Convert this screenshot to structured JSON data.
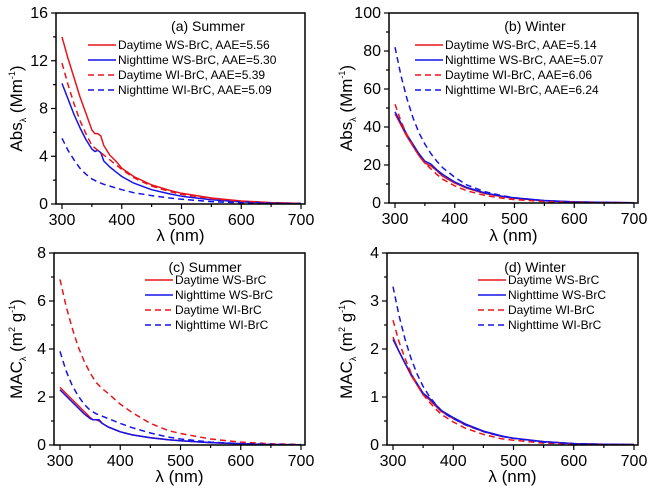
{
  "chart_data": [
    {
      "id": "a",
      "type": "line",
      "title": "(a) Summer",
      "xlabel": "λ (nm)",
      "ylabel_main": "Abs",
      "ylabel_sub": "λ",
      "ylabel_unit": "(Mm",
      "ylabel_sup": "-1",
      "ylabel_close": ")",
      "xlim": [
        290,
        705
      ],
      "ylim": [
        0,
        16
      ],
      "xticks": [
        300,
        400,
        500,
        600,
        700
      ],
      "yticks": [
        0,
        4,
        8,
        12,
        16
      ],
      "grid": false,
      "legend_position": "top-right",
      "series": [
        {
          "name": "Daytime WS-BrC, AAE=5.56",
          "color": "#e8141b",
          "dash": false,
          "x": [
            300,
            310,
            320,
            330,
            340,
            350,
            355,
            360,
            365,
            370,
            380,
            390,
            400,
            420,
            450,
            480,
            500,
            550,
            600,
            650,
            700
          ],
          "y": [
            14.0,
            12.2,
            10.6,
            9.0,
            7.6,
            6.2,
            5.9,
            5.9,
            5.7,
            4.9,
            4.1,
            3.6,
            3.0,
            2.3,
            1.6,
            1.15,
            0.9,
            0.5,
            0.25,
            0.12,
            0.05
          ]
        },
        {
          "name": "Nighttime WS-BrC, AAE=5.30",
          "color": "#1414e6",
          "dash": false,
          "x": [
            300,
            310,
            320,
            330,
            340,
            350,
            355,
            360,
            365,
            370,
            380,
            390,
            400,
            420,
            450,
            480,
            500,
            550,
            600,
            650,
            700
          ],
          "y": [
            10.1,
            8.8,
            7.5,
            6.4,
            5.4,
            4.6,
            4.4,
            4.5,
            4.3,
            3.6,
            3.1,
            2.7,
            2.3,
            1.75,
            1.2,
            0.85,
            0.65,
            0.35,
            0.18,
            0.08,
            0.04
          ]
        },
        {
          "name": "Daytime WI-BrC, AAE=5.39",
          "color": "#e8141b",
          "dash": true,
          "x": [
            300,
            310,
            320,
            330,
            340,
            350,
            360,
            370,
            380,
            390,
            400,
            420,
            450,
            480,
            500,
            550,
            600,
            650,
            700
          ],
          "y": [
            11.8,
            10.0,
            8.4,
            7.0,
            5.9,
            4.9,
            4.5,
            4.1,
            3.7,
            3.3,
            2.9,
            2.2,
            1.5,
            1.05,
            0.8,
            0.45,
            0.22,
            0.1,
            0.04
          ]
        },
        {
          "name": "Nighttime WI-BrC, AAE=5.09",
          "color": "#1414e6",
          "dash": true,
          "x": [
            300,
            310,
            320,
            330,
            340,
            350,
            360,
            370,
            380,
            400,
            420,
            450,
            480,
            500,
            550,
            600,
            650,
            700
          ],
          "y": [
            5.5,
            4.5,
            3.7,
            3.0,
            2.5,
            2.1,
            1.85,
            1.65,
            1.5,
            1.2,
            0.95,
            0.7,
            0.5,
            0.4,
            0.2,
            0.1,
            0.05,
            0.02
          ]
        }
      ]
    },
    {
      "id": "b",
      "type": "line",
      "title": "(b) Winter",
      "xlabel": "λ (nm)",
      "ylabel_main": "Abs",
      "ylabel_sub": "λ",
      "ylabel_unit": "(Mm",
      "ylabel_sup": "-1",
      "ylabel_close": ")",
      "xlim": [
        290,
        705
      ],
      "ylim": [
        0,
        100
      ],
      "xticks": [
        300,
        400,
        500,
        600,
        700
      ],
      "yticks": [
        0,
        20,
        40,
        60,
        80,
        100
      ],
      "grid": false,
      "legend_position": "top-right",
      "series": [
        {
          "name": "Daytime WS-BrC, AAE=5.14",
          "color": "#e8141b",
          "dash": false,
          "x": [
            300,
            310,
            320,
            330,
            340,
            350,
            360,
            370,
            380,
            400,
            420,
            450,
            480,
            500,
            550,
            600,
            650,
            700
          ],
          "y": [
            47,
            41,
            35,
            30,
            25,
            21,
            19.5,
            17,
            14,
            10.5,
            7.8,
            5.0,
            3.3,
            2.5,
            1.2,
            0.6,
            0.3,
            0.15
          ]
        },
        {
          "name": "Nighttime WS-BrC, AAE=5.07",
          "color": "#1414e6",
          "dash": false,
          "x": [
            300,
            310,
            320,
            330,
            340,
            350,
            360,
            370,
            380,
            400,
            420,
            450,
            480,
            500,
            550,
            600,
            650,
            700
          ],
          "y": [
            48,
            42,
            36,
            31,
            26,
            22,
            20.5,
            17.5,
            15,
            11,
            8.2,
            5.3,
            3.5,
            2.7,
            1.3,
            0.6,
            0.3,
            0.15
          ]
        },
        {
          "name": "Daytime WI-BrC, AAE=6.06",
          "color": "#e8141b",
          "dash": true,
          "x": [
            300,
            310,
            320,
            330,
            340,
            350,
            360,
            370,
            380,
            400,
            420,
            450,
            480,
            500,
            550,
            600,
            650,
            700
          ],
          "y": [
            52,
            43,
            36,
            30,
            25,
            21,
            18,
            15,
            12.5,
            9.0,
            6.5,
            4.0,
            2.5,
            1.8,
            0.8,
            0.35,
            0.15,
            0.05
          ]
        },
        {
          "name": "Nighttime WI-BrC, AAE=6.24",
          "color": "#1414e6",
          "dash": true,
          "x": [
            300,
            310,
            320,
            330,
            340,
            350,
            360,
            370,
            380,
            400,
            420,
            450,
            480,
            500,
            550,
            600,
            650,
            700
          ],
          "y": [
            82,
            67,
            55,
            45,
            37,
            31,
            26,
            22,
            18.5,
            13.5,
            9.5,
            6.0,
            3.8,
            2.8,
            1.2,
            0.5,
            0.2,
            0.08
          ]
        }
      ]
    },
    {
      "id": "c",
      "type": "line",
      "title": "(c) Summer",
      "xlabel": "λ (nm)",
      "ylabel_main": "MAC",
      "ylabel_sub": "λ",
      "ylabel_unit": "(m",
      "ylabel_sup": "2",
      "ylabel_mid": " g",
      "ylabel_sup2": "-1",
      "ylabel_close": ")",
      "xlim": [
        290,
        705
      ],
      "ylim": [
        0,
        8
      ],
      "xticks": [
        300,
        400,
        500,
        600,
        700
      ],
      "yticks": [
        0,
        2,
        4,
        6,
        8
      ],
      "grid": false,
      "legend_position": "top-right",
      "series": [
        {
          "name": "Daytime WS-BrC",
          "color": "#e8141b",
          "dash": false,
          "x": [
            300,
            310,
            320,
            330,
            340,
            350,
            355,
            360,
            365,
            370,
            380,
            400,
            420,
            450,
            480,
            500,
            550,
            600,
            650,
            700
          ],
          "y": [
            2.4,
            2.15,
            1.9,
            1.65,
            1.4,
            1.15,
            1.05,
            1.05,
            1.0,
            0.9,
            0.75,
            0.55,
            0.42,
            0.3,
            0.22,
            0.18,
            0.1,
            0.05,
            0.02,
            0.01
          ]
        },
        {
          "name": "Nighttime WS-BrC",
          "color": "#1414e6",
          "dash": false,
          "x": [
            300,
            310,
            320,
            330,
            340,
            350,
            355,
            360,
            365,
            370,
            380,
            400,
            420,
            450,
            480,
            500,
            550,
            600,
            650,
            700
          ],
          "y": [
            2.3,
            2.05,
            1.8,
            1.55,
            1.3,
            1.1,
            1.05,
            1.05,
            1.05,
            0.9,
            0.75,
            0.55,
            0.42,
            0.3,
            0.22,
            0.18,
            0.1,
            0.05,
            0.02,
            0.01
          ]
        },
        {
          "name": "Daytime WI-BrC",
          "color": "#e8141b",
          "dash": true,
          "x": [
            300,
            310,
            320,
            330,
            340,
            350,
            360,
            370,
            380,
            400,
            420,
            450,
            480,
            500,
            550,
            600,
            650,
            700
          ],
          "y": [
            6.9,
            5.8,
            4.9,
            4.1,
            3.5,
            3.0,
            2.6,
            2.35,
            2.15,
            1.7,
            1.35,
            0.9,
            0.6,
            0.48,
            0.25,
            0.12,
            0.05,
            0.02
          ]
        },
        {
          "name": "Nighttime WI-BrC",
          "color": "#1414e6",
          "dash": true,
          "x": [
            300,
            310,
            320,
            330,
            340,
            350,
            360,
            370,
            380,
            400,
            420,
            450,
            480,
            500,
            550,
            600,
            650,
            700
          ],
          "y": [
            3.9,
            3.1,
            2.5,
            2.05,
            1.7,
            1.45,
            1.3,
            1.2,
            1.1,
            0.9,
            0.72,
            0.5,
            0.33,
            0.25,
            0.12,
            0.06,
            0.03,
            0.01
          ]
        }
      ]
    },
    {
      "id": "d",
      "type": "line",
      "title": "(d) Winter",
      "xlabel": "λ (nm)",
      "ylabel_main": "MAC",
      "ylabel_sub": "λ",
      "ylabel_unit": "(m",
      "ylabel_sup": "2",
      "ylabel_mid": " g",
      "ylabel_sup2": "-1",
      "ylabel_close": ")",
      "xlim": [
        290,
        705
      ],
      "ylim": [
        0,
        4
      ],
      "xticks": [
        300,
        400,
        500,
        600,
        700
      ],
      "yticks": [
        0,
        1,
        2,
        3,
        4
      ],
      "grid": false,
      "legend_position": "top-right",
      "series": [
        {
          "name": "Daytime WS-BrC",
          "color": "#e8141b",
          "dash": false,
          "x": [
            300,
            310,
            320,
            330,
            340,
            350,
            360,
            370,
            380,
            400,
            420,
            450,
            480,
            500,
            550,
            600,
            650,
            700
          ],
          "y": [
            2.25,
            1.95,
            1.7,
            1.45,
            1.25,
            1.05,
            0.95,
            0.82,
            0.7,
            0.55,
            0.42,
            0.28,
            0.18,
            0.14,
            0.07,
            0.03,
            0.015,
            0.01
          ]
        },
        {
          "name": "Nighttime WS-BrC",
          "color": "#1414e6",
          "dash": false,
          "x": [
            300,
            310,
            320,
            330,
            340,
            350,
            360,
            370,
            380,
            400,
            420,
            450,
            480,
            500,
            550,
            600,
            650,
            700
          ],
          "y": [
            2.2,
            1.95,
            1.7,
            1.48,
            1.28,
            1.08,
            0.98,
            0.85,
            0.72,
            0.57,
            0.44,
            0.29,
            0.19,
            0.14,
            0.07,
            0.03,
            0.015,
            0.01
          ]
        },
        {
          "name": "Daytime WI-BrC",
          "color": "#e8141b",
          "dash": true,
          "x": [
            300,
            310,
            320,
            330,
            340,
            350,
            360,
            370,
            380,
            400,
            420,
            450,
            480,
            500,
            550,
            600,
            650,
            700
          ],
          "y": [
            2.6,
            2.15,
            1.8,
            1.5,
            1.25,
            1.05,
            0.9,
            0.76,
            0.64,
            0.48,
            0.35,
            0.22,
            0.13,
            0.1,
            0.04,
            0.02,
            0.01,
            0.0
          ]
        },
        {
          "name": "Nighttime WI-BrC",
          "color": "#1414e6",
          "dash": true,
          "x": [
            300,
            310,
            320,
            330,
            340,
            350,
            360,
            370,
            380,
            390,
            400,
            420,
            450,
            480,
            500,
            550,
            600,
            650,
            700
          ],
          "y": [
            3.3,
            2.7,
            2.2,
            1.8,
            1.48,
            1.22,
            1.02,
            0.86,
            0.72,
            0.62,
            0.55,
            0.42,
            0.28,
            0.18,
            0.14,
            0.06,
            0.03,
            0.01,
            0.0
          ]
        }
      ]
    }
  ]
}
